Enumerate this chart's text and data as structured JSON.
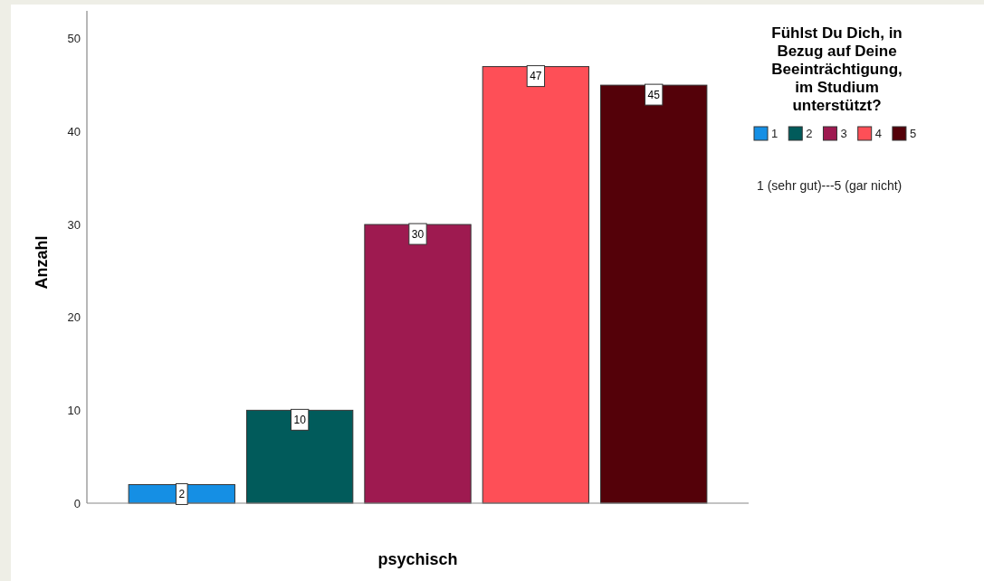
{
  "chart_data": {
    "type": "bar",
    "xlabel": "psychisch",
    "ylabel": "Anzahl",
    "legend_title": "Fühlst Du Dich, in Bezug auf Deine Beeinträchtigung, im Studium unterstützt?",
    "annotations": [
      "1 (sehr gut)---5 (gar nicht)"
    ],
    "categories": [
      null
    ],
    "series": [
      {
        "name": "1",
        "color": "#158fe4",
        "values": [
          2
        ]
      },
      {
        "name": "2",
        "color": "#015b5b",
        "values": [
          10
        ]
      },
      {
        "name": "3",
        "color": "#9e1a50",
        "values": [
          30
        ]
      },
      {
        "name": "4",
        "color": "#fe4f57",
        "values": [
          47
        ]
      },
      {
        "name": "5",
        "color": "#540109",
        "values": [
          45
        ]
      }
    ],
    "ylim": [
      0,
      53
    ],
    "yticks": [
      0,
      10,
      20,
      30,
      40,
      50
    ],
    "data_labels": true,
    "legend": "top right"
  }
}
